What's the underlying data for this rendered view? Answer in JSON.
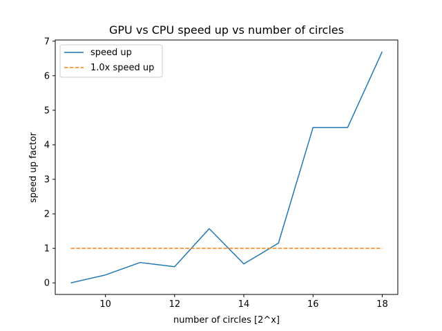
{
  "chart_data": {
    "type": "line",
    "title": "GPU vs CPU speed up vs number of circles",
    "xlabel": "number of circles [2^x]",
    "ylabel": "speed up factor",
    "xlim": [
      8.55,
      18.45
    ],
    "ylim": [
      -0.335,
      7.035
    ],
    "xticks": [
      10,
      12,
      14,
      16,
      18
    ],
    "yticks": [
      0,
      1,
      2,
      3,
      4,
      5,
      6,
      7
    ],
    "grid": false,
    "legend_position": "top-left",
    "series": [
      {
        "name": "speed up",
        "style": "solid",
        "color": "#1f77b4",
        "x": [
          9,
          10,
          11,
          12,
          13,
          14,
          15,
          16,
          17,
          18
        ],
        "y": [
          0.0,
          0.23,
          0.59,
          0.47,
          1.57,
          0.55,
          1.15,
          4.5,
          4.5,
          6.7
        ]
      },
      {
        "name": "1.0x speed up",
        "style": "dashed",
        "color": "#ff7f0e",
        "x": [
          9,
          18
        ],
        "y": [
          1.0,
          1.0
        ]
      }
    ]
  }
}
